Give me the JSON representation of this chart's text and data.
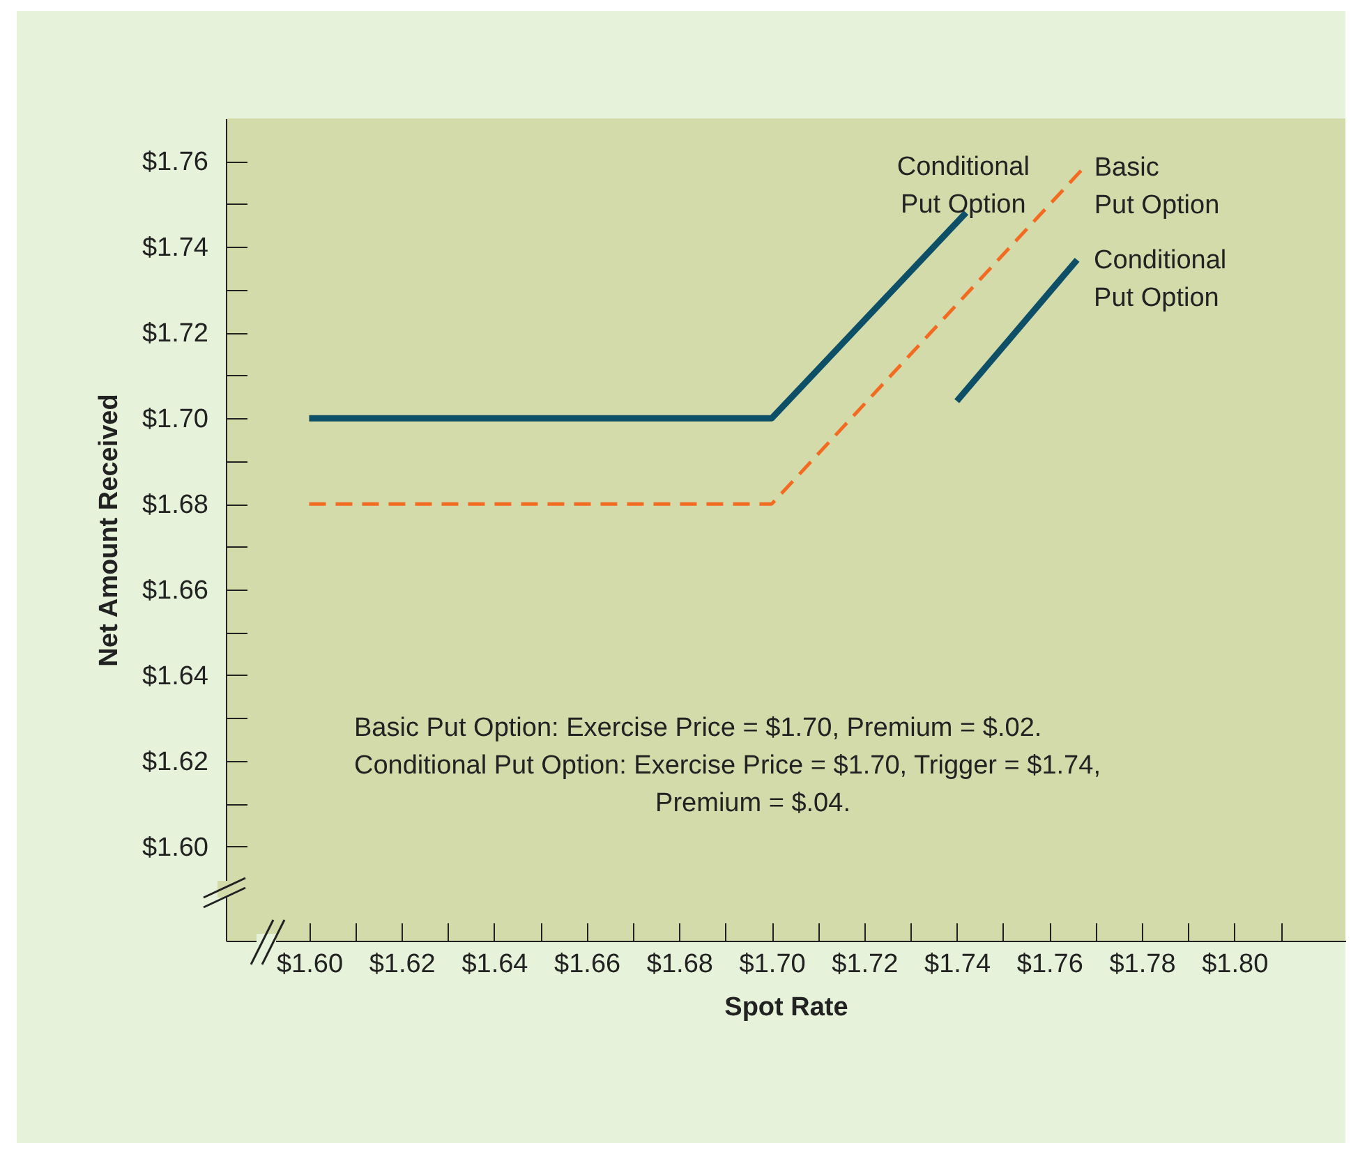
{
  "chart_data": {
    "type": "line",
    "xlabel": "Spot Rate",
    "ylabel": "Net Amount Received",
    "xlim": [
      1.582,
      1.824
    ],
    "ylim": [
      1.578,
      1.77
    ],
    "xticks": [
      {
        "value": 1.6,
        "label": "$1.60"
      },
      {
        "value": 1.61,
        "label": null
      },
      {
        "value": 1.62,
        "label": "$1.62"
      },
      {
        "value": 1.63,
        "label": null
      },
      {
        "value": 1.64,
        "label": "$1.64"
      },
      {
        "value": 1.65,
        "label": null
      },
      {
        "value": 1.66,
        "label": "$1.66"
      },
      {
        "value": 1.67,
        "label": null
      },
      {
        "value": 1.68,
        "label": "$1.68"
      },
      {
        "value": 1.69,
        "label": null
      },
      {
        "value": 1.7,
        "label": "$1.70"
      },
      {
        "value": 1.71,
        "label": null
      },
      {
        "value": 1.72,
        "label": "$1.72"
      },
      {
        "value": 1.73,
        "label": null
      },
      {
        "value": 1.74,
        "label": "$1.74"
      },
      {
        "value": 1.75,
        "label": null
      },
      {
        "value": 1.76,
        "label": "$1.76"
      },
      {
        "value": 1.77,
        "label": null
      },
      {
        "value": 1.78,
        "label": "$1.78"
      },
      {
        "value": 1.79,
        "label": null
      },
      {
        "value": 1.8,
        "label": "$1.80"
      },
      {
        "value": 1.81,
        "label": null
      }
    ],
    "yticks": [
      {
        "value": 1.6,
        "label": "$1.60"
      },
      {
        "value": 1.61,
        "label": null
      },
      {
        "value": 1.62,
        "label": "$1.62"
      },
      {
        "value": 1.63,
        "label": null
      },
      {
        "value": 1.64,
        "label": "$1.64"
      },
      {
        "value": 1.65,
        "label": null
      },
      {
        "value": 1.66,
        "label": "$1.66"
      },
      {
        "value": 1.67,
        "label": null
      },
      {
        "value": 1.68,
        "label": "$1.68"
      },
      {
        "value": 1.69,
        "label": null
      },
      {
        "value": 1.7,
        "label": "$1.70"
      },
      {
        "value": 1.71,
        "label": null
      },
      {
        "value": 1.72,
        "label": "$1.72"
      },
      {
        "value": 1.73,
        "label": null
      },
      {
        "value": 1.74,
        "label": "$1.74"
      },
      {
        "value": 1.75,
        "label": null
      },
      {
        "value": 1.76,
        "label": "$1.76"
      }
    ],
    "series": [
      {
        "name": "Conditional Put Option",
        "color": "#0d4f66",
        "line_style": "solid",
        "x": [
          1.6,
          1.7,
          1.742
        ],
        "values": [
          1.7,
          1.7,
          1.748
        ]
      },
      {
        "name": "Basic Put Option",
        "color": "#f26b21",
        "line_style": "dashed",
        "x": [
          1.6,
          1.7,
          1.767
        ],
        "values": [
          1.68,
          1.68,
          1.758
        ]
      },
      {
        "name": "Conditional Put Option",
        "color": "#0d4f66",
        "line_style": "solid",
        "x": [
          1.74,
          1.766
        ],
        "values": [
          1.704,
          1.737
        ]
      }
    ],
    "annotations": [
      "Basic Put Option: Exercise Price = $1.70, Premium = $.02.",
      "Conditional Put Option: Exercise Price = $1.70, Trigger = $1.74,",
      "Premium = $.04."
    ],
    "grid": false
  }
}
